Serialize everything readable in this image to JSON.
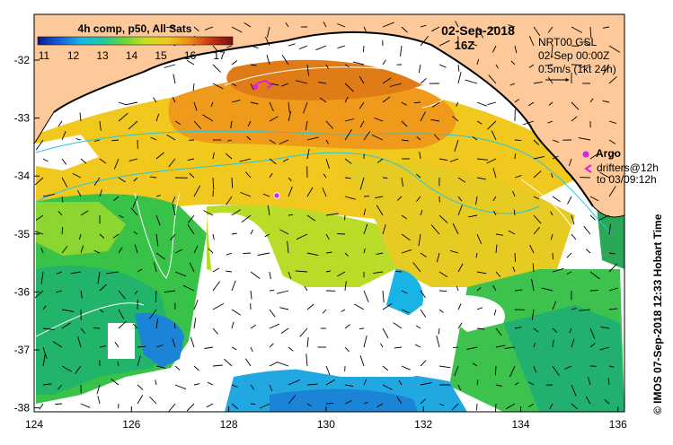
{
  "map": {
    "title_date": "02-Sep-2018",
    "title_time": "16Z",
    "composite_label": "4h comp, p50, All Sats",
    "colorbar": {
      "ticks": [
        "11",
        "12",
        "13",
        "14",
        "15",
        "16",
        "17"
      ],
      "colors": [
        "#0a1a8c",
        "#1660d8",
        "#19b4e6",
        "#21c8a0",
        "#6ad636",
        "#c8e024",
        "#f0c81e",
        "#f08c14",
        "#c83214",
        "#7a1010"
      ]
    },
    "current_info": {
      "source": "NRT00 GSL",
      "datetime": "02-Sep 00:00Z",
      "scale": "0.5m/s (1kt 24h)"
    },
    "legend": {
      "argo": "Argo",
      "drifters": "drifters@12h",
      "drifters_to": "to 03/09:12h"
    },
    "credit": "© IMOS 07-Sep-2018 12:33 Hobart Time",
    "x_ticks": [
      "124",
      "126",
      "128",
      "130",
      "132",
      "134",
      "136"
    ],
    "y_ticks": [
      "-32",
      "-33",
      "-34",
      "-35",
      "-36",
      "-37",
      "-38"
    ],
    "colors": {
      "land": "#fdc99a",
      "argo": "#e020e0",
      "contour": "#ffffff",
      "isobath": "#22c8e6"
    }
  }
}
